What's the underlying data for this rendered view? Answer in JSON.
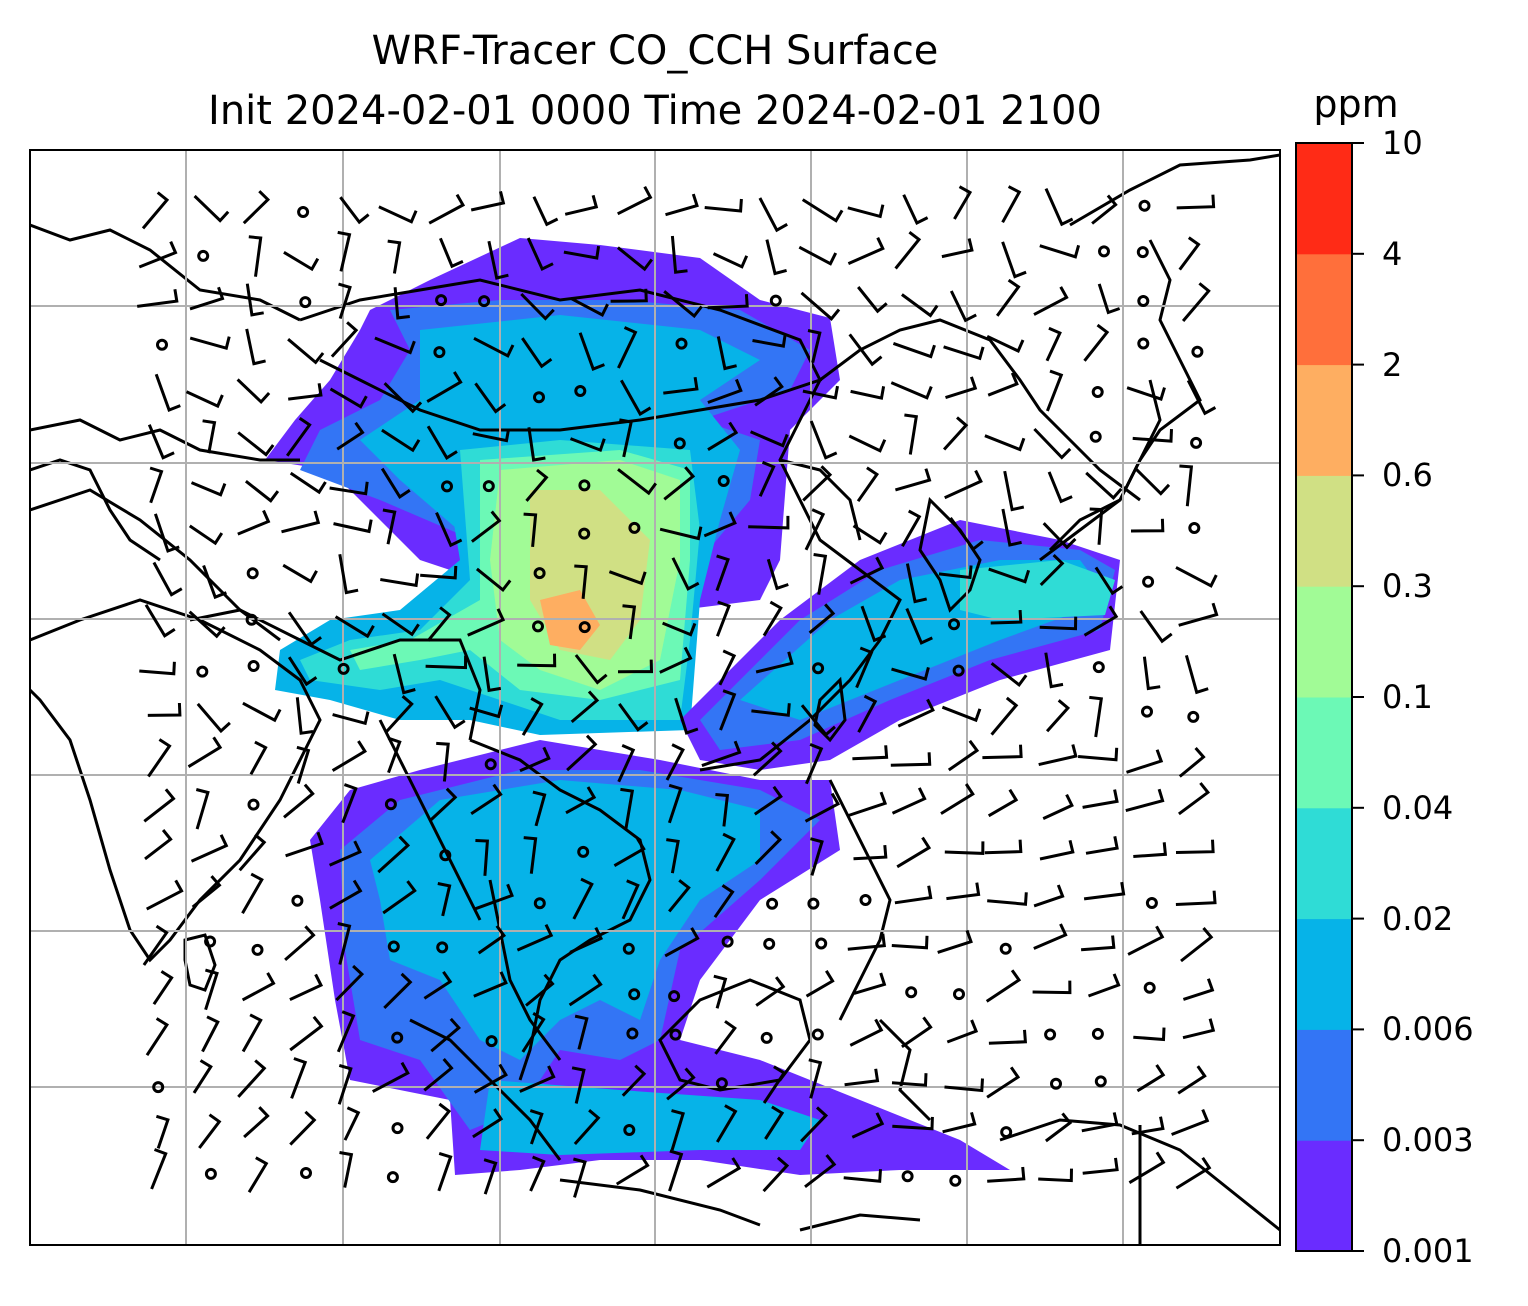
{
  "title": {
    "line1": "WRF-Tracer CO_CCH Surface",
    "line2": "Init 2024-02-01 0000 Time 2024-02-01 2100"
  },
  "colorbar": {
    "unit": "ppm",
    "levels": [
      "0.001",
      "0.003",
      "0.006",
      "0.02",
      "0.04",
      "0.1",
      "0.3",
      "0.6",
      "2",
      "4",
      "10"
    ],
    "colors": [
      "#6a2cff",
      "#3375f5",
      "#06b3e8",
      "#2fdcd6",
      "#6cf9b6",
      "#a1fb96",
      "#d0e084",
      "#feae61",
      "#ff6f3b",
      "#ff2b16"
    ]
  },
  "map": {
    "projection": "Mercator",
    "gridlines": true,
    "coastlines": true,
    "wind_barbs": true
  }
}
